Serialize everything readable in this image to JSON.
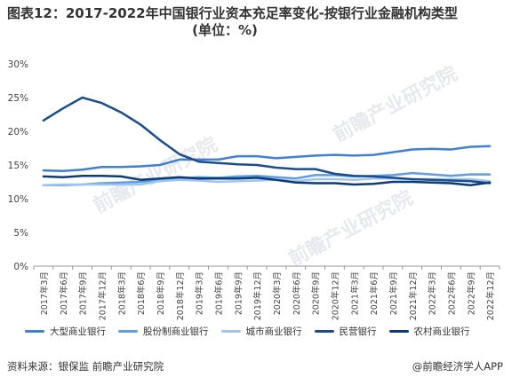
{
  "title_line1": "图表12：2017-2022年中国银行业资本充足率变化-按银行业金融机构类型",
  "title_line2": "(单位：%)",
  "source": "资料来源：银保监 前瞻产业研究院",
  "credit": "@前瞻经济学人APP",
  "watermark": "前瞻产业研究院",
  "chart_data": {
    "type": "line",
    "categories": [
      "2017Q1",
      "2017Q2",
      "2017Q3",
      "2017Q4",
      "2018Q1",
      "2018Q2",
      "2018Q3",
      "2018Q4",
      "2019Q1",
      "2019Q2",
      "2019Q3",
      "2019Q4",
      "2020Q1",
      "2020Q2",
      "2020Q3",
      "2020Q4",
      "2021Q1",
      "2021Q2",
      "2021Q3",
      "2021Q4",
      "2022Q1",
      "2022Q2",
      "2022Q3",
      "2022Q4"
    ],
    "tick_labels": [
      "2017年3月",
      "2017年6月",
      "2017年9月",
      "2017年12月",
      "2018年3月",
      "2018年6月",
      "2018年9月",
      "2018年12月",
      "2019年3月",
      "2019年6月",
      "2019年9月",
      "2019年12月",
      "2020年3月",
      "2020年6月",
      "2020年9月",
      "2020年12月",
      "2021年3月",
      "2021年6月",
      "2021年9月",
      "2021年12月",
      "2022年3月",
      "2022年6月",
      "2022年9月",
      "2022年12月"
    ],
    "y_ticks": [
      "0%",
      "5%",
      "10%",
      "15%",
      "20%",
      "25%",
      "30%"
    ],
    "ylim": [
      0,
      30
    ],
    "grid": false,
    "legend_position": "bottom",
    "series": [
      {
        "name": "大型商业银行",
        "color": "#3f7fd4",
        "values": [
          14.2,
          14.1,
          14.3,
          14.7,
          14.7,
          14.8,
          15.0,
          15.8,
          15.8,
          15.8,
          16.3,
          16.3,
          16.0,
          16.2,
          16.4,
          16.5,
          16.4,
          16.5,
          16.9,
          17.3,
          17.4,
          17.3,
          17.7,
          17.8
        ]
      },
      {
        "name": "股份制商业银行",
        "color": "#5e9ee0",
        "values": [
          12.0,
          12.0,
          12.1,
          12.3,
          12.4,
          12.5,
          12.7,
          13.0,
          13.2,
          13.1,
          13.3,
          13.4,
          13.2,
          13.0,
          13.5,
          13.5,
          13.3,
          13.4,
          13.5,
          13.8,
          13.6,
          13.4,
          13.6,
          13.6
        ]
      },
      {
        "name": "城市商业银行",
        "color": "#9ec4ef",
        "values": [
          12.0,
          12.1,
          12.1,
          12.1,
          12.1,
          12.1,
          12.6,
          12.8,
          12.7,
          12.5,
          12.6,
          12.7,
          12.8,
          12.6,
          12.9,
          12.9,
          12.8,
          13.0,
          13.0,
          12.9,
          12.9,
          12.9,
          12.9,
          12.6
        ]
      },
      {
        "name": "民营银行",
        "color": "#1b4d8e",
        "values": [
          21.6,
          23.4,
          25.0,
          24.2,
          22.8,
          21.0,
          18.7,
          16.6,
          15.5,
          15.3,
          15.1,
          15.0,
          14.6,
          14.4,
          14.4,
          13.7,
          13.4,
          13.3,
          13.1,
          12.9,
          12.8,
          12.7,
          12.6,
          12.3
        ]
      },
      {
        "name": "农村商业银行",
        "color": "#0c3c78",
        "values": [
          13.3,
          13.2,
          13.4,
          13.4,
          13.3,
          12.8,
          13.0,
          13.2,
          13.0,
          13.0,
          13.0,
          13.1,
          12.8,
          12.4,
          12.3,
          12.3,
          12.1,
          12.2,
          12.5,
          12.5,
          12.4,
          12.3,
          12.0,
          12.4
        ]
      }
    ]
  }
}
